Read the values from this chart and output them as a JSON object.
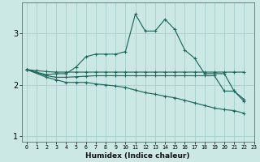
{
  "xlabel": "Humidex (Indice chaleur)",
  "xlim": [
    -0.5,
    23
  ],
  "ylim": [
    0.9,
    3.6
  ],
  "yticks": [
    1,
    2,
    3
  ],
  "xticks": [
    0,
    1,
    2,
    3,
    4,
    5,
    6,
    7,
    8,
    9,
    10,
    11,
    12,
    13,
    14,
    15,
    16,
    17,
    18,
    19,
    20,
    21,
    22,
    23
  ],
  "bg_color": "#cce8e5",
  "grid_color": "#aad4d0",
  "line_color": "#1a6b5e",
  "lines": [
    {
      "x": [
        0,
        1,
        2,
        3,
        4,
        5,
        6,
        7,
        8,
        9,
        10,
        11,
        12,
        13,
        14,
        15,
        16,
        17,
        18,
        19,
        20,
        21,
        22
      ],
      "y": [
        2.3,
        2.28,
        2.26,
        2.25,
        2.25,
        2.25,
        2.25,
        2.25,
        2.25,
        2.25,
        2.25,
        2.25,
        2.25,
        2.25,
        2.25,
        2.25,
        2.25,
        2.25,
        2.25,
        2.25,
        2.25,
        2.25,
        2.25
      ]
    },
    {
      "x": [
        0,
        2,
        3,
        4,
        5,
        6,
        7,
        8,
        9,
        10,
        11,
        12,
        13,
        14,
        15,
        16,
        17,
        18,
        19,
        20,
        21,
        22
      ],
      "y": [
        2.3,
        2.2,
        2.22,
        2.22,
        2.35,
        2.55,
        2.6,
        2.6,
        2.6,
        2.65,
        3.38,
        3.05,
        3.05,
        3.28,
        3.08,
        2.68,
        2.52,
        2.22,
        2.22,
        2.22,
        1.88,
        1.68
      ]
    },
    {
      "x": [
        0,
        2,
        3,
        4,
        5,
        6,
        7,
        8,
        9,
        10,
        11,
        12,
        13,
        14,
        15,
        16,
        17,
        18,
        19,
        20,
        21,
        22
      ],
      "y": [
        2.3,
        2.18,
        2.15,
        2.15,
        2.16,
        2.17,
        2.18,
        2.18,
        2.18,
        2.18,
        2.18,
        2.18,
        2.18,
        2.18,
        2.18,
        2.18,
        2.18,
        2.18,
        2.18,
        1.88,
        1.88,
        1.72
      ]
    },
    {
      "x": [
        0,
        2,
        3,
        4,
        5,
        6,
        7,
        8,
        9,
        10,
        11,
        12,
        13,
        14,
        15,
        16,
        17,
        18,
        19,
        20,
        21,
        22
      ],
      "y": [
        2.3,
        2.15,
        2.1,
        2.05,
        2.05,
        2.05,
        2.02,
        2.0,
        1.98,
        1.95,
        1.9,
        1.85,
        1.82,
        1.78,
        1.75,
        1.7,
        1.65,
        1.6,
        1.55,
        1.52,
        1.5,
        1.45
      ]
    }
  ]
}
